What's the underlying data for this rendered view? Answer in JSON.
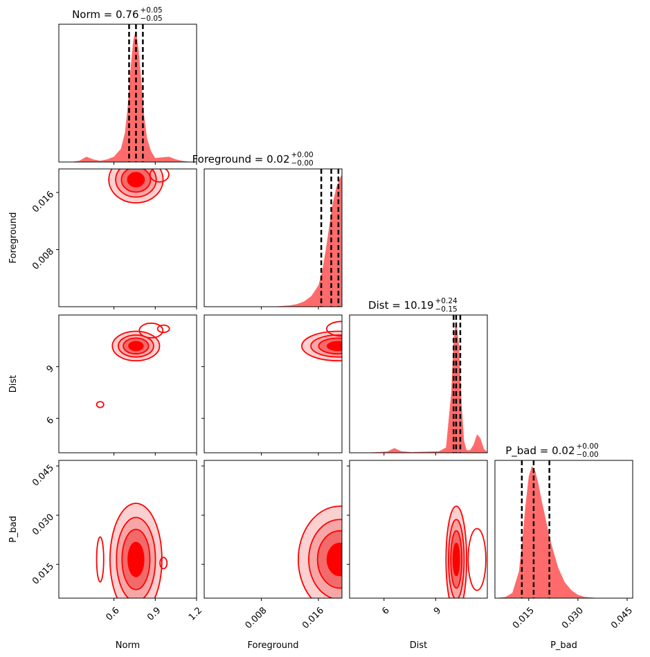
{
  "chart_data": {
    "type": "corner",
    "parameters": [
      "Norm",
      "Foreground",
      "Dist",
      "P_bad"
    ],
    "axis_ranges": {
      "Norm": [
        0.2,
        1.2
      ],
      "Foreground": [
        0.0,
        0.0193
      ],
      "Dist": [
        4.0,
        12.0
      ],
      "P_bad": [
        0.0047,
        0.0467
      ]
    },
    "ticks": {
      "Norm": [
        0.6,
        0.9,
        1.2
      ],
      "Foreground": [
        0.008,
        0.016
      ],
      "Dist": [
        6,
        9
      ],
      "P_bad": [
        0.015,
        0.03,
        0.045
      ]
    },
    "tick_labels": {
      "Norm": [
        "0.6",
        "0.9",
        "1.2"
      ],
      "Foreground": [
        "0.008",
        "0.016"
      ],
      "Dist": [
        "6",
        "9"
      ],
      "P_bad": [
        "0.015",
        "0.030",
        "0.045"
      ]
    },
    "titles": [
      {
        "param": "Norm",
        "text": "Norm = 0.76",
        "plus": "+0.05",
        "minus": "−0.05"
      },
      {
        "param": "Foreground",
        "text": "Foreground = 0.02",
        "plus": "+0.00",
        "minus": "−0.00"
      },
      {
        "param": "Dist",
        "text": "Dist = 10.19",
        "plus": "+0.24",
        "minus": "−0.15"
      },
      {
        "param": "P_bad",
        "text": "P_bad = 0.02",
        "plus": "+0.00",
        "minus": "−0.00"
      }
    ],
    "quantiles": {
      "Norm": [
        0.71,
        0.76,
        0.81
      ],
      "Foreground": [
        0.0164,
        0.0178,
        0.0188
      ],
      "Dist": [
        10.04,
        10.19,
        10.43
      ],
      "P_bad": [
        0.0129,
        0.0165,
        0.0213
      ]
    },
    "marginals": {
      "Norm": {
        "x": [
          0.2,
          0.25,
          0.3,
          0.35,
          0.4,
          0.45,
          0.5,
          0.55,
          0.6,
          0.65,
          0.68,
          0.7,
          0.72,
          0.74,
          0.76,
          0.78,
          0.8,
          0.82,
          0.84,
          0.87,
          0.9,
          0.95,
          1.0,
          1.05,
          1.1,
          1.15,
          1.2
        ],
        "y": [
          0,
          0,
          0.002,
          0.01,
          0.04,
          0.02,
          0.01,
          0.02,
          0.04,
          0.1,
          0.22,
          0.42,
          0.7,
          0.92,
          1.0,
          0.84,
          0.6,
          0.34,
          0.18,
          0.08,
          0.03,
          0.035,
          0.04,
          0.02,
          0.008,
          0.002,
          0
        ]
      },
      "Foreground": {
        "x": [
          0,
          0.002,
          0.004,
          0.006,
          0.008,
          0.01,
          0.012,
          0.013,
          0.014,
          0.015,
          0.016,
          0.0165,
          0.017,
          0.0175,
          0.018,
          0.0185,
          0.019,
          0.0193
        ],
        "y": [
          0,
          0,
          0,
          0,
          0,
          0.002,
          0.01,
          0.02,
          0.04,
          0.08,
          0.16,
          0.26,
          0.42,
          0.6,
          0.78,
          0.9,
          0.97,
          1.0
        ]
      },
      "Dist": {
        "x": [
          4,
          4.8,
          5.6,
          6.2,
          6.6,
          7.0,
          7.6,
          8.2,
          8.8,
          9.2,
          9.6,
          9.9,
          10.05,
          10.2,
          10.35,
          10.5,
          10.65,
          10.8,
          11.0,
          11.2,
          11.4,
          11.6,
          11.8,
          12
        ],
        "y": [
          0,
          0,
          0.005,
          0.01,
          0.035,
          0.012,
          0.005,
          0.008,
          0.01,
          0.012,
          0.04,
          0.45,
          0.88,
          1.0,
          0.82,
          0.38,
          0.09,
          0.02,
          0.02,
          0.06,
          0.14,
          0.11,
          0.03,
          0.005
        ]
      },
      "P_bad": {
        "x": [
          0.0047,
          0.008,
          0.01,
          0.012,
          0.013,
          0.014,
          0.015,
          0.016,
          0.017,
          0.018,
          0.019,
          0.02,
          0.021,
          0.022,
          0.024,
          0.026,
          0.028,
          0.03,
          0.032,
          0.034,
          0.036,
          0.04,
          0.0467
        ],
        "y": [
          0,
          0.01,
          0.04,
          0.2,
          0.42,
          0.7,
          0.92,
          1.0,
          0.96,
          0.86,
          0.73,
          0.62,
          0.5,
          0.4,
          0.23,
          0.12,
          0.06,
          0.025,
          0.01,
          0.005,
          0.002,
          0,
          0
        ]
      }
    },
    "contours_2d": [
      {
        "x": "Norm",
        "y": "Foreground",
        "center": [
          0.76,
          0.0178
        ],
        "blobs": [
          [
            0.76,
            0.0178,
            0.23,
            0.0038
          ],
          [
            0.93,
            0.0185,
            0.08,
            0.0012
          ]
        ]
      },
      {
        "x": "Norm",
        "y": "Dist",
        "center": [
          0.76,
          10.2
        ],
        "blobs": [
          [
            0.76,
            10.2,
            0.2,
            1.0
          ],
          [
            0.87,
            11.1,
            0.1,
            0.5
          ],
          [
            0.96,
            11.2,
            0.05,
            0.25
          ],
          [
            0.5,
            6.8,
            0.03,
            0.2
          ]
        ]
      },
      {
        "x": "Foreground",
        "y": "Dist",
        "center": [
          0.0185,
          10.2
        ],
        "blobs": [
          [
            0.0188,
            10.2,
            0.006,
            1.0
          ],
          [
            0.0193,
            11.2,
            0.0025,
            0.5
          ]
        ]
      },
      {
        "x": "Norm",
        "y": "P_bad",
        "center": [
          0.76,
          0.0165
        ],
        "blobs": [
          [
            0.76,
            0.0165,
            0.22,
            0.02
          ],
          [
            0.5,
            0.0165,
            0.03,
            0.008
          ],
          [
            0.96,
            0.0154,
            0.03,
            0.002
          ]
        ]
      },
      {
        "x": "Foreground",
        "y": "P_bad",
        "center": [
          0.0188,
          0.0165
        ],
        "blobs": [
          [
            0.019,
            0.0165,
            0.0068,
            0.019
          ]
        ]
      },
      {
        "x": "Dist",
        "y": "P_bad",
        "center": [
          10.2,
          0.0165
        ],
        "blobs": [
          [
            10.2,
            0.0165,
            0.7,
            0.019
          ],
          [
            11.4,
            0.0165,
            0.6,
            0.011
          ]
        ]
      }
    ],
    "colors": {
      "fill": "#ff6b6b",
      "contour": "#ff0000",
      "quantile_line": "#000000"
    },
    "xlabel": [
      "Norm",
      "Foreground",
      "Dist",
      "P_bad"
    ],
    "ylabel": [
      "Foreground",
      "Dist",
      "P_bad"
    ]
  }
}
